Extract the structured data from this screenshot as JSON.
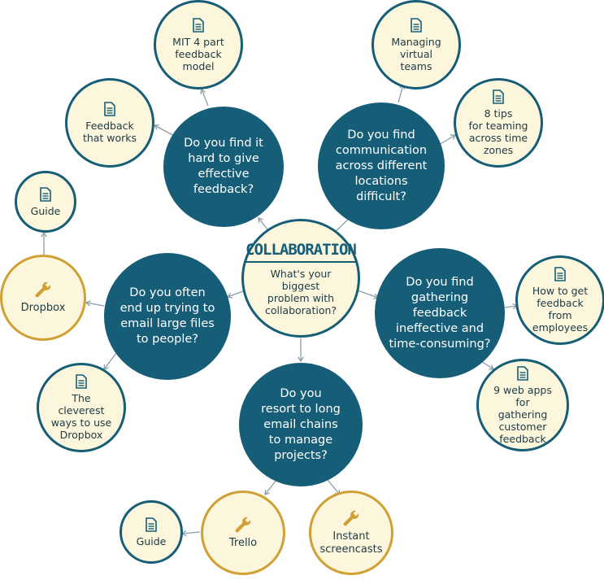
{
  "center": {
    "title": "COLLABORATION",
    "subtitle": "What's your biggest\nproblem with\ncollaboration?"
  },
  "questions": {
    "feedback": "Do you find it\nhard to give\neffective\nfeedback?",
    "communication": "Do you find\ncommunication\nacross different\nlocations\ndifficult?",
    "large_files": "Do you often\nend up trying to\nemail large files\nto people?",
    "gathering": "Do you find\ngathering feedback\nineffective and\ntime-consuming?",
    "email_chains": "Do you\nresort to long\nemail chains\nto manage\nprojects?"
  },
  "resources": {
    "mit_model": "MIT 4 part\nfeedback\nmodel",
    "feedback_works": "Feedback\nthat works",
    "virtual_teams": "Managing\nvirtual\nteams",
    "eight_tips": "8 tips\nfor teaming\nacross time\nzones",
    "guide_dropbox": "Guide",
    "cleverest": "The\ncleverest\nways to use\nDropbox",
    "employees": "How to get\nfeedback\nfrom\nemployees",
    "web_apps": "9 web apps for\ngathering\ncustomer\nfeedback",
    "guide_trello": "Guide"
  },
  "tools": {
    "dropbox": "Dropbox",
    "trello": "Trello",
    "screencasts": "Instant\nscreencasts"
  },
  "icons": {
    "document": "document-icon",
    "wrench": "wrench-icon"
  },
  "colors": {
    "question": "#165e77",
    "resource_border": "#165e77",
    "tool_border": "#d0a034",
    "fill": "#fbf6dc"
  }
}
